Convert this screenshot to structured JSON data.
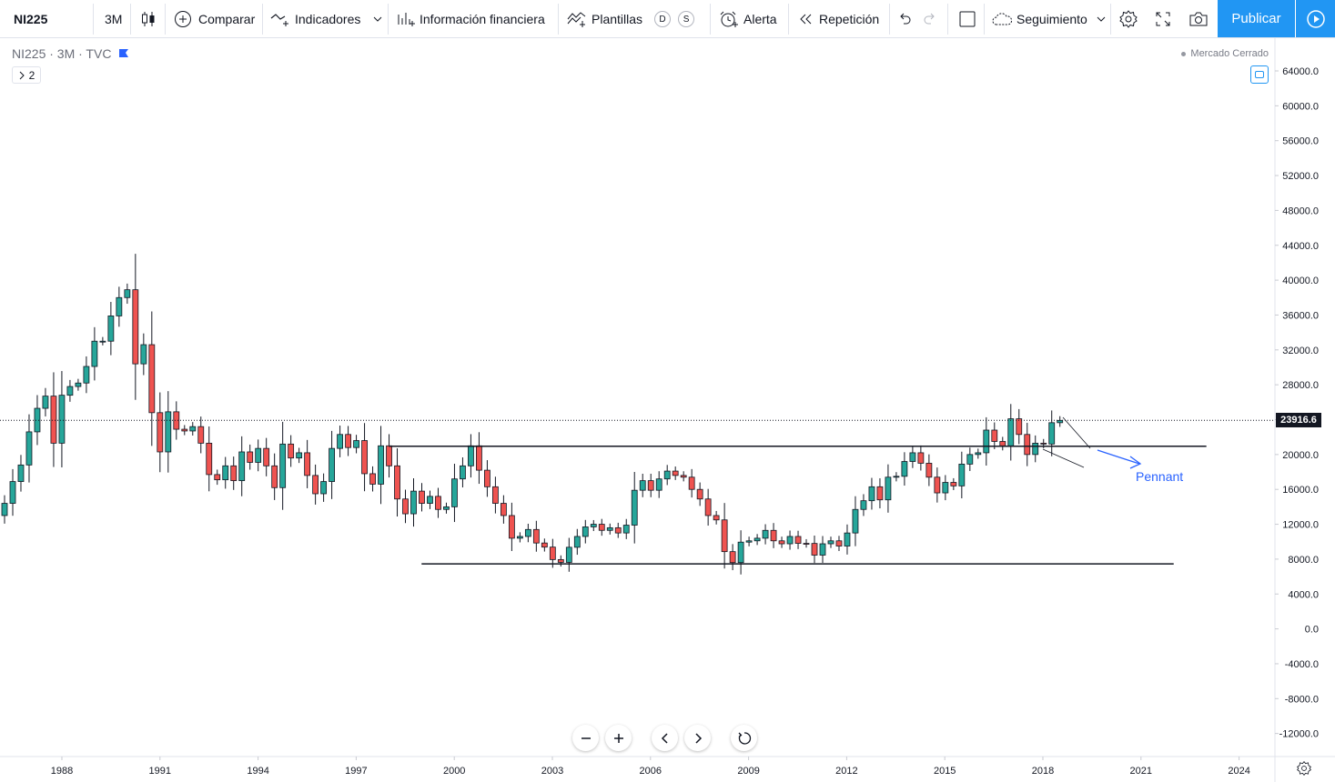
{
  "toolbar": {
    "symbol": "NI225",
    "interval": "3M",
    "compare_label": "Comparar",
    "indicators_label": "Indicadores",
    "financials_label": "Información financiera",
    "templates_label": "Plantillas",
    "templates_badge_d": "D",
    "templates_badge_s": "S",
    "alert_label": "Alerta",
    "replay_label": "Repetición",
    "watch_label": "Seguimiento",
    "publish_label": "Publicar"
  },
  "legend": {
    "title": "NI225 · 3M · TVC",
    "indicators_count": "2",
    "market_status": "Mercado Cerrado"
  },
  "last_price": "23916.6",
  "annotation": "Pennant",
  "colors": {
    "up": "#26a69a",
    "down": "#ef5350",
    "accent": "#2196f3",
    "annotation": "#2962ff"
  },
  "chart_data": {
    "type": "candlestick",
    "symbol": "NI225",
    "interval": "3M",
    "ylim": [
      -13500,
      67500
    ],
    "y_ticks": [
      "64000.0",
      "60000.0",
      "56000.0",
      "52000.0",
      "48000.0",
      "44000.0",
      "40000.0",
      "36000.0",
      "32000.0",
      "28000.0",
      "24000.0",
      "20000.0",
      "16000.0",
      "12000.0",
      "8000.0",
      "4000.0",
      "0.0",
      "-4000.0",
      "-8000.0",
      "-12000.0"
    ],
    "x_ticks": [
      "1988",
      "1991",
      "1994",
      "1997",
      "2000",
      "2003",
      "2006",
      "2009",
      "2012",
      "2015",
      "2018",
      "2021",
      "2024"
    ],
    "last_price": 23916.6,
    "closes": [
      14400,
      16900,
      18800,
      22600,
      25300,
      26700,
      21300,
      26800,
      27800,
      28200,
      30100,
      33000,
      33000,
      35900,
      38000,
      38900,
      30400,
      32600,
      24800,
      20300,
      24900,
      22900,
      22700,
      23200,
      21300,
      17700,
      17100,
      18700,
      17000,
      20300,
      19100,
      20700,
      18700,
      16200,
      21200,
      19600,
      20200,
      17600,
      15500,
      16900,
      20700,
      22300,
      20800,
      21600,
      17800,
      16600,
      21000,
      18700,
      14900,
      13200,
      15800,
      14400,
      15200,
      13700,
      14000,
      17200,
      18700,
      21000,
      18200,
      16300,
      14400,
      13000,
      10400,
      10600,
      11400,
      9850,
      9380,
      7950,
      7630,
      9360,
      10600,
      11700,
      12000,
      11300,
      11600,
      11000,
      11900,
      15900,
      17000,
      15900,
      17200,
      18100,
      17600,
      17400,
      16000,
      14900,
      13000,
      12500,
      8860,
      7600,
      9950,
      10100,
      10400,
      11300,
      10100,
      9760,
      10600,
      9810,
      9800,
      8460,
      9760,
      10100,
      9500,
      11000,
      13700,
      14700,
      16300,
      14800,
      17400,
      17500,
      19200,
      20200,
      19000,
      17400,
      15600,
      16800,
      16400,
      18900,
      20000,
      20200,
      22800,
      21500,
      21000,
      24100,
      22300,
      20000,
      21300,
      21200,
      23650,
      23916.6
    ],
    "levels": [
      {
        "name": "resistance",
        "value": 20950,
        "from": "1998",
        "to": "2023"
      },
      {
        "name": "support",
        "value": 7450,
        "from": "1999",
        "to": "2022"
      }
    ],
    "pattern": "Pennant"
  }
}
